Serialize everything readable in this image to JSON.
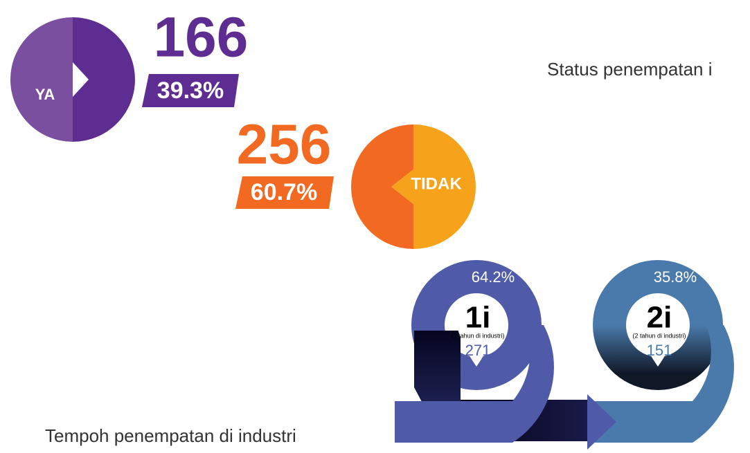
{
  "status": {
    "title": "Status penempatan i",
    "yes": {
      "label": "YA",
      "count": "166",
      "percent": "39.3%"
    },
    "no": {
      "label": "TIDAK",
      "count": "256",
      "percent": "60.7%"
    }
  },
  "duration": {
    "title": "Tempoh penempatan di industri",
    "items": [
      {
        "percent": "64.2%",
        "code": "1i",
        "desc": "(1 tahun di industri)",
        "count": "271"
      },
      {
        "percent": "35.8%",
        "code": "2i",
        "desc": "(2 tahun di industri)",
        "count": "151"
      }
    ]
  }
}
